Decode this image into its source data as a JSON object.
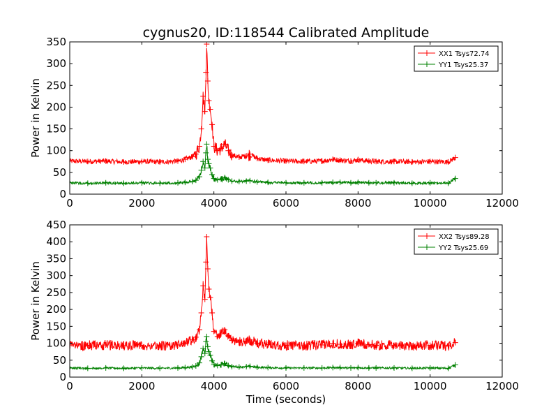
{
  "figure": {
    "title": "cygnus20, ID:118544 Calibrated Amplitude"
  },
  "chart_data": [
    {
      "type": "line",
      "title": "cygnus20, ID:118544 Calibrated Amplitude",
      "xlabel": "",
      "ylabel": "Power in Kelvin",
      "xlim": [
        0,
        12000
      ],
      "ylim": [
        0,
        350
      ],
      "xticks": [
        0,
        2000,
        4000,
        6000,
        8000,
        10000,
        12000
      ],
      "yticks": [
        0,
        50,
        100,
        150,
        200,
        250,
        300,
        350
      ],
      "legend_position": "top-right",
      "grid": false,
      "series": [
        {
          "name": "XX1 Tsys72.74",
          "color": "#ff0000",
          "marker": "+",
          "x": [
            0,
            500,
            1000,
            1500,
            2000,
            2500,
            3000,
            3200,
            3400,
            3500,
            3600,
            3650,
            3700,
            3750,
            3780,
            3800,
            3830,
            3860,
            3900,
            3950,
            4000,
            4100,
            4200,
            4300,
            4400,
            4500,
            4700,
            4900,
            5000,
            5200,
            5500,
            6000,
            6500,
            7000,
            7300,
            7500,
            7800,
            8000,
            8300,
            8500,
            9000,
            9500,
            10000,
            10500,
            10700
          ],
          "y": [
            76,
            75,
            76,
            74,
            75,
            74,
            76,
            80,
            86,
            92,
            110,
            150,
            225,
            190,
            280,
            345,
            260,
            215,
            195,
            160,
            110,
            100,
            105,
            115,
            100,
            90,
            85,
            88,
            92,
            82,
            78,
            76,
            75,
            76,
            80,
            78,
            76,
            79,
            76,
            75,
            75,
            74,
            75,
            74,
            84
          ]
        },
        {
          "name": "YY1 Tsys25.37",
          "color": "#008000",
          "marker": "+",
          "x": [
            0,
            500,
            1000,
            1500,
            2000,
            2500,
            3000,
            3200,
            3400,
            3500,
            3600,
            3650,
            3700,
            3750,
            3780,
            3800,
            3830,
            3860,
            3900,
            3950,
            4000,
            4100,
            4200,
            4300,
            4400,
            4500,
            4700,
            4900,
            5000,
            5200,
            5500,
            6000,
            6500,
            7000,
            7300,
            7500,
            7800,
            8000,
            8300,
            8500,
            9000,
            9500,
            10000,
            10500,
            10700
          ],
          "y": [
            26,
            25,
            26,
            25,
            26,
            25,
            26,
            27,
            29,
            32,
            40,
            55,
            75,
            60,
            95,
            115,
            80,
            70,
            60,
            45,
            36,
            33,
            35,
            38,
            33,
            30,
            29,
            30,
            31,
            28,
            27,
            26,
            26,
            26,
            27,
            27,
            26,
            27,
            26,
            26,
            26,
            25,
            26,
            25,
            36
          ]
        }
      ]
    },
    {
      "type": "line",
      "title": "",
      "xlabel": "Time (seconds)",
      "ylabel": "Power in Kelvin",
      "xlim": [
        0,
        12000
      ],
      "ylim": [
        0,
        450
      ],
      "xticks": [
        0,
        2000,
        4000,
        6000,
        8000,
        10000,
        12000
      ],
      "yticks": [
        0,
        50,
        100,
        150,
        200,
        250,
        300,
        350,
        400,
        450
      ],
      "legend_position": "top-right",
      "grid": false,
      "series": [
        {
          "name": "XX2 Tsys89.28",
          "color": "#ff0000",
          "marker": "+",
          "x": [
            0,
            500,
            1000,
            1500,
            2000,
            2500,
            3000,
            3200,
            3400,
            3500,
            3600,
            3650,
            3700,
            3750,
            3780,
            3800,
            3830,
            3860,
            3900,
            3950,
            4000,
            4100,
            4200,
            4300,
            4400,
            4500,
            4700,
            4900,
            5000,
            5200,
            5500,
            6000,
            6500,
            7000,
            7300,
            7500,
            7800,
            8000,
            8300,
            8500,
            9000,
            9500,
            10000,
            10500,
            10700
          ],
          "y": [
            95,
            94,
            95,
            93,
            94,
            93,
            95,
            100,
            110,
            118,
            140,
            190,
            270,
            230,
            340,
            415,
            320,
            260,
            235,
            190,
            135,
            120,
            128,
            140,
            122,
            108,
            103,
            106,
            110,
            100,
            96,
            94,
            93,
            95,
            100,
            97,
            95,
            100,
            96,
            94,
            94,
            93,
            94,
            93,
            102
          ]
        },
        {
          "name": "YY2 Tsys25.69",
          "color": "#008000",
          "marker": "+",
          "x": [
            0,
            500,
            1000,
            1500,
            2000,
            2500,
            3000,
            3200,
            3400,
            3500,
            3600,
            3650,
            3700,
            3750,
            3780,
            3800,
            3830,
            3860,
            3900,
            3950,
            4000,
            4100,
            4200,
            4300,
            4400,
            4500,
            4700,
            4900,
            5000,
            5200,
            5500,
            6000,
            6500,
            7000,
            7300,
            7500,
            7800,
            8000,
            8300,
            8500,
            9000,
            9500,
            10000,
            10500,
            10700
          ],
          "y": [
            27,
            26,
            27,
            26,
            27,
            26,
            27,
            28,
            30,
            33,
            42,
            60,
            85,
            70,
            105,
            120,
            90,
            75,
            65,
            48,
            37,
            34,
            36,
            40,
            34,
            31,
            30,
            31,
            32,
            29,
            28,
            27,
            27,
            27,
            28,
            28,
            27,
            28,
            27,
            27,
            27,
            26,
            27,
            26,
            36
          ]
        }
      ]
    }
  ]
}
